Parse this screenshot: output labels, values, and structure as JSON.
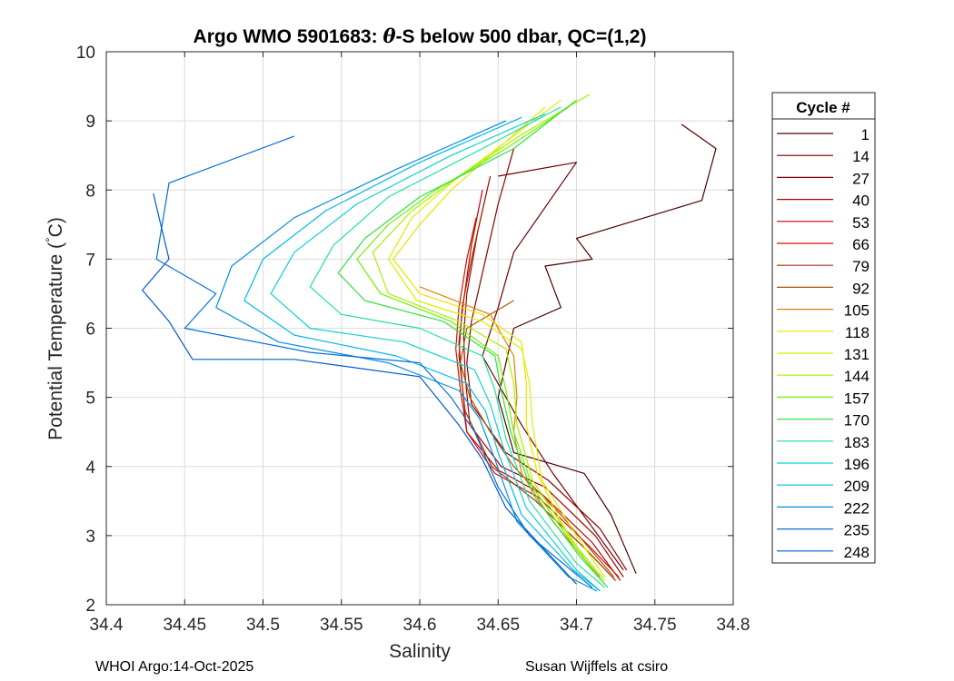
{
  "chart_data": {
    "type": "line",
    "title_prefix": "Argo WMO 5901683: ",
    "title_symbol": "θ",
    "title_suffix": "-S below 500 dbar,  QC=(1,2)",
    "xlabel": "Salinity",
    "ylabel_main": "Potential Temperature (",
    "ylabel_deg": "°",
    "ylabel_unit": "C)",
    "xlim": [
      34.4,
      34.8
    ],
    "ylim": [
      2,
      10
    ],
    "x_ticks": [
      "34.4",
      "34.45",
      "34.5",
      "34.55",
      "34.6",
      "34.65",
      "34.7",
      "34.75",
      "34.8"
    ],
    "y_ticks": [
      "2",
      "3",
      "4",
      "5",
      "6",
      "7",
      "8",
      "9",
      "10"
    ],
    "grid": true,
    "legend_title": "Cycle #",
    "legend_position": "right-outside",
    "series": [
      {
        "name": "1",
        "color": "#500000",
        "salinity": [
          34.767,
          34.789,
          34.78,
          34.7,
          34.71,
          34.68,
          34.69,
          34.66,
          34.65,
          34.66,
          34.705,
          34.722,
          34.738
        ],
        "temperature": [
          8.95,
          8.6,
          7.85,
          7.3,
          7.0,
          6.9,
          6.3,
          6.0,
          5.0,
          4.2,
          3.9,
          3.3,
          2.45
        ]
      },
      {
        "name": "14",
        "color": "#700000",
        "salinity": [
          34.65,
          34.7,
          34.66,
          34.65,
          34.64,
          34.665,
          34.685,
          34.73
        ],
        "temperature": [
          8.2,
          8.4,
          7.1,
          6.3,
          5.6,
          4.6,
          3.9,
          2.5
        ]
      },
      {
        "name": "27",
        "color": "#8c0000",
        "salinity": [
          34.66,
          34.65,
          34.64,
          34.633,
          34.63,
          34.633,
          34.655,
          34.682,
          34.715,
          34.732
        ],
        "temperature": [
          8.6,
          7.8,
          6.8,
          6.1,
          5.5,
          4.9,
          4.2,
          3.8,
          3.1,
          2.5
        ]
      },
      {
        "name": "40",
        "color": "#a80000",
        "salinity": [
          34.645,
          34.637,
          34.63,
          34.628,
          34.629,
          34.632,
          34.652,
          34.68,
          34.712,
          34.73
        ],
        "temperature": [
          8.2,
          7.4,
          6.5,
          5.9,
          5.3,
          4.6,
          4.0,
          3.7,
          3.0,
          2.4
        ]
      },
      {
        "name": "53",
        "color": "#c00000",
        "salinity": [
          34.64,
          34.633,
          34.628,
          34.625,
          34.627,
          34.63,
          34.65,
          34.678,
          34.71,
          34.728
        ],
        "temperature": [
          8.0,
          7.2,
          6.4,
          5.8,
          5.2,
          4.5,
          3.95,
          3.6,
          2.9,
          2.35
        ]
      },
      {
        "name": "66",
        "color": "#d01000",
        "salinity": [
          34.636,
          34.63,
          34.625,
          34.623,
          34.626,
          34.63,
          34.648,
          34.676,
          34.708,
          34.727
        ],
        "temperature": [
          7.6,
          7.0,
          6.3,
          5.7,
          5.1,
          4.5,
          3.9,
          3.55,
          2.85,
          2.4
        ]
      },
      {
        "name": "79",
        "color": "#a03000",
        "salinity": [
          34.64,
          34.633,
          34.627,
          34.625,
          34.629,
          34.646,
          34.674,
          34.706,
          34.725
        ],
        "temperature": [
          7.7,
          7.0,
          6.3,
          5.6,
          4.8,
          4.0,
          3.5,
          2.8,
          2.35
        ]
      },
      {
        "name": "92",
        "color": "#b05000",
        "salinity": [
          34.66,
          34.63,
          34.626,
          34.632,
          34.645,
          34.66,
          34.69,
          34.724
        ],
        "temperature": [
          6.4,
          6.0,
          5.5,
          5.0,
          4.5,
          4.0,
          3.3,
          2.4
        ]
      },
      {
        "name": "105",
        "color": "#e08000",
        "salinity": [
          34.6,
          34.645,
          34.66,
          34.662,
          34.66,
          34.665,
          34.685,
          34.715
        ],
        "temperature": [
          6.6,
          6.2,
          5.6,
          5.0,
          4.5,
          3.9,
          3.2,
          2.4
        ]
      },
      {
        "name": "118",
        "color": "#f0e000",
        "salinity": [
          34.68,
          34.65,
          34.62,
          34.6,
          34.583,
          34.6,
          34.64,
          34.665,
          34.668,
          34.668,
          34.675,
          34.69,
          34.71
        ],
        "temperature": [
          9.2,
          8.6,
          8.0,
          7.5,
          7.0,
          6.5,
          6.2,
          5.8,
          5.2,
          4.6,
          3.9,
          3.2,
          2.5
        ]
      },
      {
        "name": "131",
        "color": "#d8f000",
        "salinity": [
          34.69,
          34.655,
          34.62,
          34.595,
          34.58,
          34.598,
          34.64,
          34.665,
          34.67,
          34.672,
          34.678,
          34.7,
          34.718
        ],
        "temperature": [
          9.3,
          8.7,
          8.1,
          7.6,
          7.0,
          6.4,
          6.1,
          5.7,
          5.2,
          4.6,
          3.8,
          3.0,
          2.4
        ]
      },
      {
        "name": "144",
        "color": "#a8f000",
        "salinity": [
          34.708,
          34.665,
          34.625,
          34.595,
          34.57,
          34.58,
          34.625,
          34.655,
          34.66,
          34.662,
          34.672,
          34.698,
          34.718
        ],
        "temperature": [
          9.38,
          8.8,
          8.2,
          7.7,
          7.1,
          6.5,
          6.1,
          5.7,
          5.2,
          4.6,
          3.8,
          2.9,
          2.35
        ]
      },
      {
        "name": "157",
        "color": "#70f000",
        "salinity": [
          34.695,
          34.655,
          34.61,
          34.58,
          34.56,
          34.575,
          34.62,
          34.65,
          34.655,
          34.66,
          34.672,
          34.7,
          34.718
        ],
        "temperature": [
          9.2,
          8.6,
          8.0,
          7.5,
          7.0,
          6.5,
          6.1,
          5.6,
          5.1,
          4.5,
          3.7,
          2.8,
          2.3
        ]
      },
      {
        "name": "170",
        "color": "#30e040",
        "salinity": [
          34.7,
          34.66,
          34.6,
          34.565,
          34.548,
          34.565,
          34.615,
          34.648,
          34.652,
          34.658,
          34.672,
          34.702,
          34.72
        ],
        "temperature": [
          9.3,
          8.6,
          7.9,
          7.3,
          6.8,
          6.4,
          6.1,
          5.6,
          5.1,
          4.5,
          3.6,
          2.7,
          2.25
        ]
      },
      {
        "name": "183",
        "color": "#20e0a0",
        "salinity": [
          34.69,
          34.64,
          34.58,
          34.545,
          34.53,
          34.55,
          34.6,
          34.64,
          34.648,
          34.655,
          34.67,
          34.7,
          34.718
        ],
        "temperature": [
          9.2,
          8.6,
          7.9,
          7.2,
          6.6,
          6.2,
          6.0,
          5.6,
          5.1,
          4.4,
          3.5,
          2.6,
          2.25
        ]
      },
      {
        "name": "196",
        "color": "#10d0d0",
        "salinity": [
          34.68,
          34.62,
          34.56,
          34.52,
          34.505,
          34.53,
          34.59,
          34.635,
          34.645,
          34.653,
          34.668,
          34.7,
          34.715
        ],
        "temperature": [
          9.1,
          8.5,
          7.8,
          7.1,
          6.5,
          6.0,
          5.8,
          5.4,
          4.9,
          4.3,
          3.4,
          2.5,
          2.2
        ]
      },
      {
        "name": "209",
        "color": "#00b8e8",
        "salinity": [
          34.665,
          34.6,
          34.54,
          34.5,
          34.488,
          34.52,
          34.585,
          34.63,
          34.642,
          34.65,
          34.665,
          34.698,
          34.715
        ],
        "temperature": [
          9.05,
          8.4,
          7.7,
          7.0,
          6.4,
          5.9,
          5.6,
          5.2,
          4.8,
          4.2,
          3.3,
          2.5,
          2.2
        ]
      },
      {
        "name": "222",
        "color": "#0090e0",
        "salinity": [
          34.655,
          34.585,
          34.52,
          34.48,
          34.47,
          34.51,
          34.58,
          34.625,
          34.638,
          34.648,
          34.662,
          34.695,
          34.713
        ],
        "temperature": [
          9.0,
          8.3,
          7.6,
          6.9,
          6.3,
          5.8,
          5.5,
          5.1,
          4.7,
          4.1,
          3.2,
          2.4,
          2.2
        ]
      },
      {
        "name": "235",
        "color": "#0070d8",
        "salinity": [
          34.52,
          34.44,
          34.432,
          34.47,
          34.45,
          34.53,
          34.6,
          34.62,
          34.635,
          34.65,
          34.67,
          34.71
        ],
        "temperature": [
          8.78,
          8.1,
          7.0,
          6.5,
          6.0,
          5.65,
          5.5,
          5.0,
          4.5,
          3.7,
          3.0,
          2.25
        ]
      },
      {
        "name": "248",
        "color": "#0058d0",
        "salinity": [
          34.43,
          34.44,
          34.423,
          34.44,
          34.455,
          34.52,
          34.6,
          34.625,
          34.64,
          34.655,
          34.7
        ],
        "temperature": [
          7.95,
          7.0,
          6.55,
          6.1,
          5.55,
          5.55,
          5.3,
          4.6,
          4.1,
          3.4,
          2.3
        ]
      }
    ]
  },
  "footer": {
    "left": "WHOI Argo:14-Oct-2025",
    "right": "Susan Wijffels at csiro"
  }
}
